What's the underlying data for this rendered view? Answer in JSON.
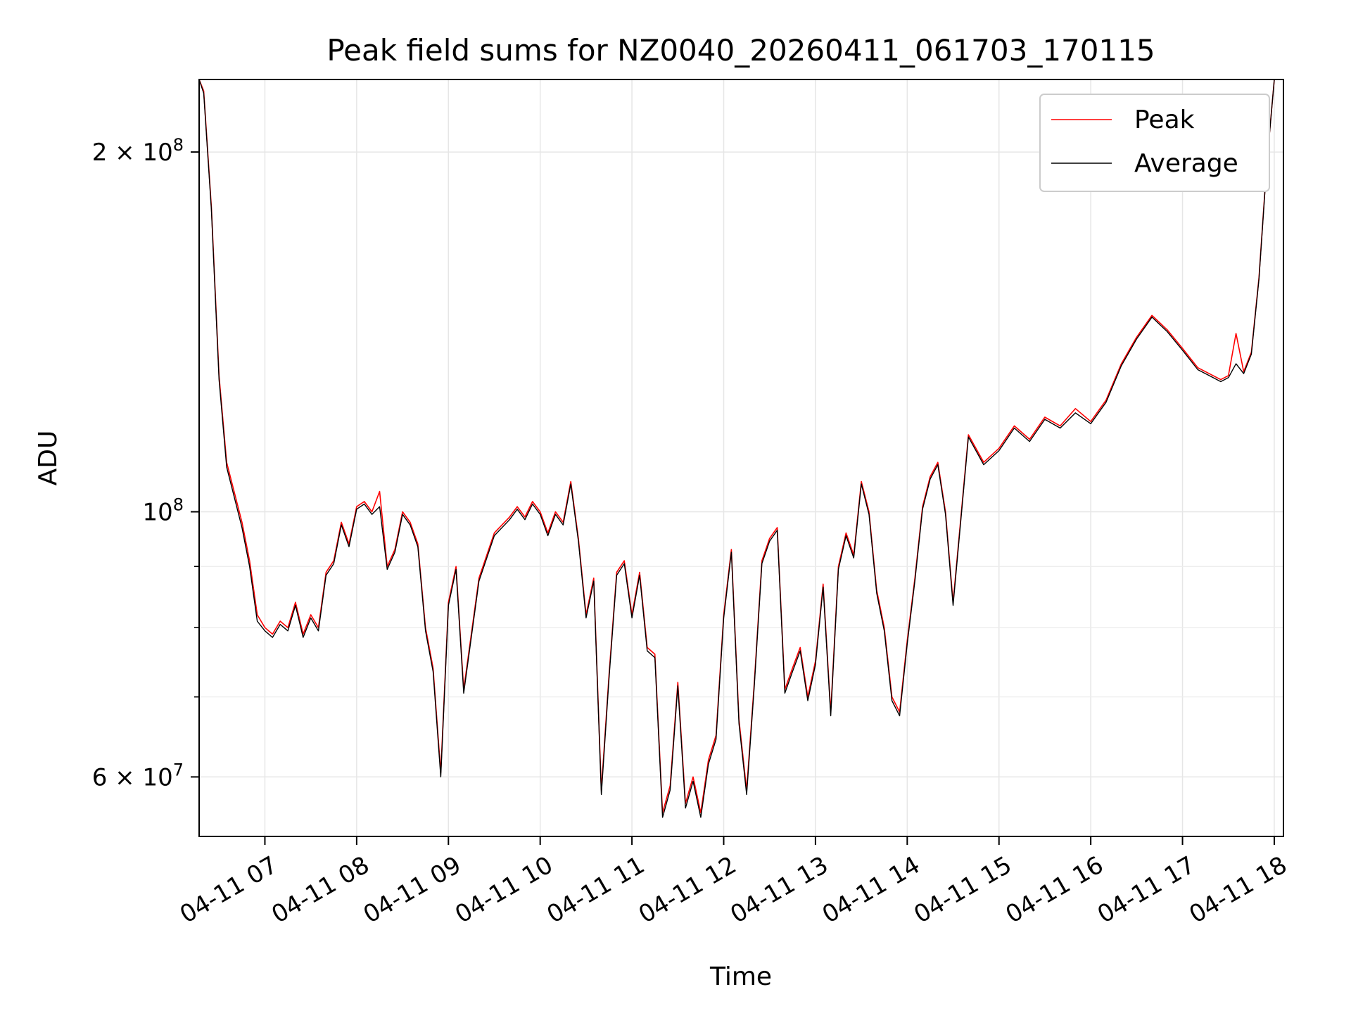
{
  "chart_data": {
    "type": "line",
    "title": "Peak field sums for NZ0040_20260411_061703_170115",
    "xlabel": "Time",
    "ylabel": "ADU",
    "yscale": "log",
    "grid": true,
    "legend_position": "top-right",
    "x_tick_labels": [
      "04-11 07",
      "04-11 08",
      "04-11 09",
      "04-11 10",
      "04-11 11",
      "04-11 12",
      "04-11 13",
      "04-11 14",
      "04-11 15",
      "04-11 16",
      "04-11 17",
      "04-11 18"
    ],
    "y_ticks": [
      {
        "value": 60000000,
        "label": "6 × 10",
        "exp": "7"
      },
      {
        "value": 100000000,
        "label": "10",
        "exp": "8"
      },
      {
        "value": 200000000,
        "label": "2 × 10",
        "exp": "8"
      }
    ],
    "y_minor_ticks": [
      70000000,
      80000000,
      90000000
    ],
    "xlim": [
      "2026-04-11 06:17",
      "2026-04-11 18:06"
    ],
    "ylim": [
      53500000,
      230000000
    ],
    "x_times": [
      "2026-04-11 06:17",
      "2026-04-11 06:20",
      "2026-04-11 06:25",
      "2026-04-11 06:30",
      "2026-04-11 06:35",
      "2026-04-11 06:45",
      "2026-04-11 06:50",
      "2026-04-11 06:55",
      "2026-04-11 07:00",
      "2026-04-11 07:05",
      "2026-04-11 07:10",
      "2026-04-11 07:15",
      "2026-04-11 07:20",
      "2026-04-11 07:25",
      "2026-04-11 07:30",
      "2026-04-11 07:35",
      "2026-04-11 07:40",
      "2026-04-11 07:45",
      "2026-04-11 07:50",
      "2026-04-11 07:55",
      "2026-04-11 08:00",
      "2026-04-11 08:05",
      "2026-04-11 08:10",
      "2026-04-11 08:15",
      "2026-04-11 08:20",
      "2026-04-11 08:25",
      "2026-04-11 08:30",
      "2026-04-11 08:35",
      "2026-04-11 08:40",
      "2026-04-11 08:45",
      "2026-04-11 08:50",
      "2026-04-11 08:55",
      "2026-04-11 09:00",
      "2026-04-11 09:05",
      "2026-04-11 09:10",
      "2026-04-11 09:20",
      "2026-04-11 09:30",
      "2026-04-11 09:40",
      "2026-04-11 09:45",
      "2026-04-11 09:50",
      "2026-04-11 09:55",
      "2026-04-11 10:00",
      "2026-04-11 10:05",
      "2026-04-11 10:10",
      "2026-04-11 10:15",
      "2026-04-11 10:20",
      "2026-04-11 10:25",
      "2026-04-11 10:30",
      "2026-04-11 10:35",
      "2026-04-11 10:40",
      "2026-04-11 10:45",
      "2026-04-11 10:50",
      "2026-04-11 10:55",
      "2026-04-11 11:00",
      "2026-04-11 11:05",
      "2026-04-11 11:10",
      "2026-04-11 11:15",
      "2026-04-11 11:20",
      "2026-04-11 11:25",
      "2026-04-11 11:30",
      "2026-04-11 11:35",
      "2026-04-11 11:40",
      "2026-04-11 11:45",
      "2026-04-11 11:50",
      "2026-04-11 11:55",
      "2026-04-11 12:00",
      "2026-04-11 12:05",
      "2026-04-11 12:10",
      "2026-04-11 12:15",
      "2026-04-11 12:20",
      "2026-04-11 12:25",
      "2026-04-11 12:30",
      "2026-04-11 12:35",
      "2026-04-11 12:40",
      "2026-04-11 12:45",
      "2026-04-11 12:50",
      "2026-04-11 12:55",
      "2026-04-11 13:00",
      "2026-04-11 13:05",
      "2026-04-11 13:10",
      "2026-04-11 13:15",
      "2026-04-11 13:20",
      "2026-04-11 13:25",
      "2026-04-11 13:30",
      "2026-04-11 13:35",
      "2026-04-11 13:40",
      "2026-04-11 13:45",
      "2026-04-11 13:50",
      "2026-04-11 13:55",
      "2026-04-11 14:00",
      "2026-04-11 14:05",
      "2026-04-11 14:10",
      "2026-04-11 14:15",
      "2026-04-11 14:20",
      "2026-04-11 14:25",
      "2026-04-11 14:30",
      "2026-04-11 14:40",
      "2026-04-11 14:50",
      "2026-04-11 15:00",
      "2026-04-11 15:10",
      "2026-04-11 15:20",
      "2026-04-11 15:30",
      "2026-04-11 15:40",
      "2026-04-11 15:50",
      "2026-04-11 16:00",
      "2026-04-11 16:10",
      "2026-04-11 16:20",
      "2026-04-11 16:30",
      "2026-04-11 16:40",
      "2026-04-11 16:50",
      "2026-04-11 17:00",
      "2026-04-11 17:10",
      "2026-04-11 17:20",
      "2026-04-11 17:25",
      "2026-04-11 17:30",
      "2026-04-11 17:35",
      "2026-04-11 17:40",
      "2026-04-11 17:45",
      "2026-04-11 17:50",
      "2026-04-11 17:55",
      "2026-04-11 18:00",
      "2026-04-11 18:06"
    ],
    "series": [
      {
        "name": "Peak",
        "color": "#ff0000",
        "values": [
          230000000,
          225000000,
          180000000,
          130000000,
          110000000,
          98000000,
          91000000,
          82000000,
          80000000,
          79000000,
          81000000,
          80000000,
          84000000,
          79000000,
          82000000,
          80000000,
          89000000,
          91000000,
          98000000,
          94000000,
          101000000,
          102000000,
          100000000,
          104000000,
          90000000,
          93000000,
          100000000,
          98000000,
          94000000,
          80000000,
          74000000,
          60500000,
          84000000,
          90000000,
          71000000,
          88000000,
          96000000,
          99000000,
          101000000,
          99000000,
          102000000,
          100000000,
          96000000,
          100000000,
          98000000,
          106000000,
          95000000,
          82000000,
          88000000,
          58500000,
          73000000,
          89000000,
          91000000,
          82000000,
          89000000,
          77000000,
          76000000,
          56000000,
          59000000,
          72000000,
          57000000,
          60000000,
          56000000,
          62000000,
          65000000,
          82000000,
          93000000,
          67000000,
          58500000,
          72000000,
          91000000,
          95000000,
          97000000,
          71000000,
          74000000,
          77000000,
          70000000,
          75000000,
          87000000,
          68000000,
          90000000,
          96000000,
          92000000,
          106000000,
          100000000,
          86000000,
          80000000,
          70000000,
          68000000,
          78000000,
          88000000,
          101000000,
          107000000,
          110000000,
          100000000,
          84000000,
          116000000,
          110000000,
          113000000,
          118000000,
          115000000,
          120000000,
          118000000,
          122000000,
          119000000,
          124000000,
          133000000,
          140000000,
          146000000,
          142000000,
          137000000,
          132000000,
          130000000,
          129000000,
          130000000,
          141000000,
          131000000,
          136000000,
          157000000,
          195000000,
          230000000
        ]
      },
      {
        "name": "Average",
        "color": "#000000",
        "values": [
          230000000,
          224000000,
          179000000,
          129000000,
          109000000,
          97000000,
          90000000,
          81000000,
          79500000,
          78500000,
          80500000,
          79500000,
          83500000,
          78500000,
          81500000,
          79500000,
          88500000,
          90500000,
          97500000,
          93500000,
          100500000,
          101500000,
          99500000,
          101000000,
          89500000,
          92500000,
          99500000,
          97500000,
          93500000,
          79500000,
          73500000,
          60000000,
          83500000,
          89500000,
          70500000,
          87500000,
          95500000,
          98500000,
          100500000,
          98500000,
          101500000,
          99500000,
          95500000,
          99500000,
          97500000,
          105500000,
          94500000,
          81500000,
          87500000,
          58000000,
          72500000,
          88500000,
          90500000,
          81500000,
          88500000,
          76500000,
          75500000,
          55500000,
          58500000,
          71500000,
          56500000,
          59500000,
          55500000,
          61500000,
          64500000,
          81500000,
          92500000,
          66500000,
          58000000,
          71500000,
          90500000,
          94500000,
          96500000,
          70500000,
          73500000,
          76500000,
          69500000,
          74500000,
          86500000,
          67500000,
          89500000,
          95500000,
          91500000,
          105500000,
          99500000,
          85500000,
          79500000,
          69500000,
          67500000,
          77500000,
          87500000,
          100500000,
          106500000,
          109500000,
          99500000,
          83500000,
          115500000,
          109500000,
          112500000,
          117500000,
          114500000,
          119500000,
          117500000,
          121000000,
          118500000,
          123500000,
          132500000,
          139500000,
          145500000,
          141500000,
          136500000,
          131500000,
          129500000,
          128500000,
          129500000,
          133000000,
          130500000,
          135500000,
          156500000,
          194500000,
          230000000
        ]
      }
    ]
  }
}
